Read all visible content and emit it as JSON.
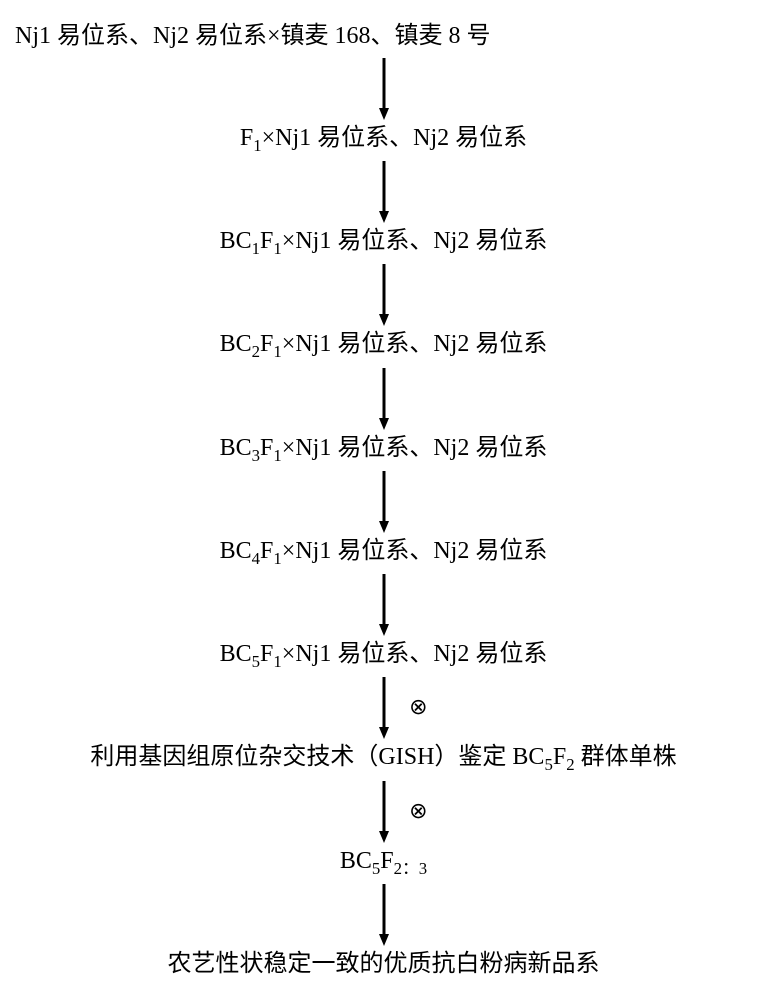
{
  "arrow": {
    "height": 68,
    "stroke": "#000000",
    "stroke_width": 3,
    "head_w": 10,
    "head_h": 14
  },
  "symbol": "⊗",
  "steps": [
    {
      "html": "Nj1 易位系、Nj2 易位系×镇麦 168、镇麦 8 号",
      "first": true,
      "symbol_after": false
    },
    {
      "html": "F<sub>1</sub>×Nj1 易位系、Nj2 易位系",
      "first": false,
      "symbol_after": false
    },
    {
      "html": "BC<sub>1</sub>F<sub>1</sub>×Nj1 易位系、Nj2 易位系",
      "first": false,
      "symbol_after": false
    },
    {
      "html": "BC<sub>2</sub>F<sub>1</sub>×Nj1 易位系、Nj2 易位系",
      "first": false,
      "symbol_after": false
    },
    {
      "html": "BC<sub>3</sub>F<sub>1</sub>×Nj1 易位系、Nj2 易位系",
      "first": false,
      "symbol_after": false
    },
    {
      "html": "BC<sub>4</sub>F<sub>1</sub>×Nj1 易位系、Nj2 易位系",
      "first": false,
      "symbol_after": false
    },
    {
      "html": "BC<sub>5</sub>F<sub>1</sub>×Nj1 易位系、Nj2 易位系",
      "first": false,
      "symbol_after": true
    },
    {
      "html": "利用基因组原位杂交技术（GISH）鉴定 BC<sub>5</sub>F<sub>2</sub> 群体单株",
      "first": false,
      "symbol_after": true
    },
    {
      "html": "BC<sub>5</sub>F<sub>2：3</sub>",
      "first": false,
      "symbol_after": false
    },
    {
      "html": "农艺性状稳定一致的优质抗白粉病新品系",
      "first": false,
      "symbol_after": false,
      "last": true
    }
  ]
}
